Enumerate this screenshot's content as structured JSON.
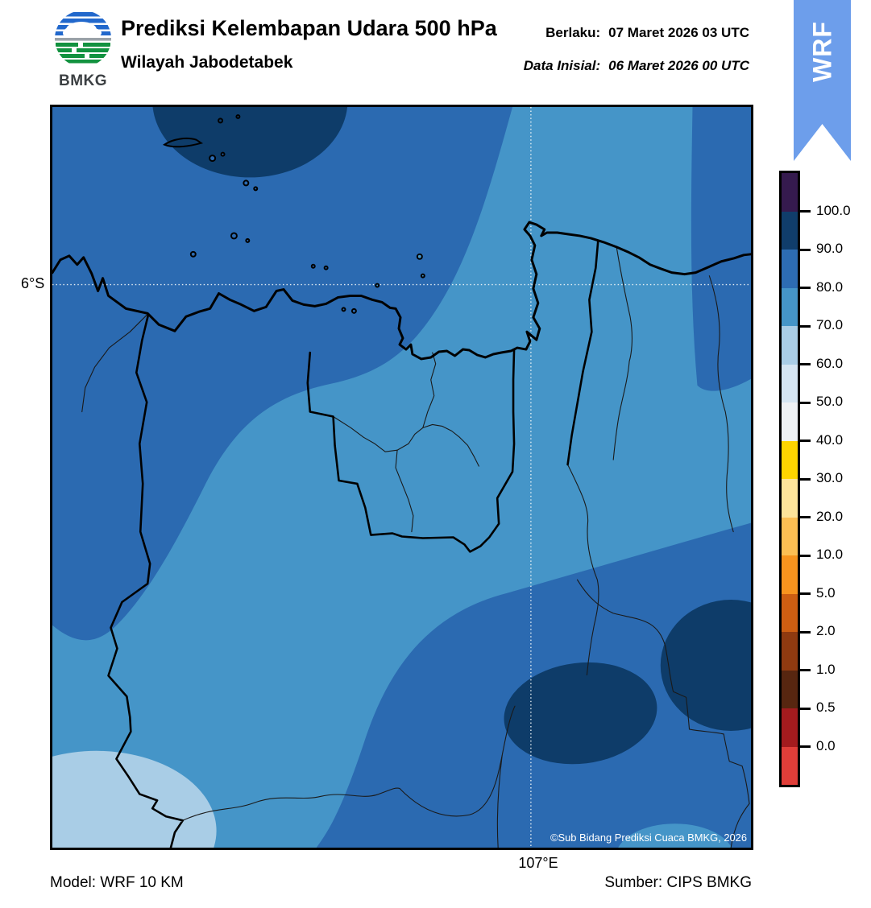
{
  "header": {
    "logo_text": "BMKG",
    "title": "Prediksi Kelembapan Udara 500 hPa",
    "subtitle": "Wilayah Jabodetabek",
    "valid": {
      "label": "Berlaku:",
      "value": "07 Maret 2026 03 UTC"
    },
    "initial": {
      "label": "Data Inisial:",
      "value": "06 Maret 2026 00 UTC"
    },
    "ribbon_label": "WRF",
    "ribbon_color": "#6d9eeb"
  },
  "map": {
    "lat_label": "6°S",
    "lon_label": "107°E",
    "copyright": "©Sub Bidang Prediksi Cuaca BMKG, 2026",
    "fill_colors": {
      "range_60_70": "#a9cde6",
      "range_70_80": "#4595c8",
      "range_80_90": "#2b6ab1",
      "range_90_100": "#0e3c69"
    }
  },
  "colorbar": {
    "tick_labels": [
      "100.0",
      "90.0",
      "80.0",
      "70.0",
      "60.0",
      "50.0",
      "40.0",
      "30.0",
      "20.0",
      "10.0",
      "5.0",
      "2.0",
      "1.0",
      "0.5",
      "0.0"
    ],
    "segment_colors_top_to_bottom": [
      "#351a4e",
      "#103d6b",
      "#2d6cb3",
      "#4595c8",
      "#a9cde6",
      "#d5e5f2",
      "#eef1f4",
      "#fed500",
      "#fde49a",
      "#fcbf53",
      "#f7941e",
      "#cd5e12",
      "#8f3a10",
      "#572610",
      "#a31b1e",
      "#e03e39"
    ]
  },
  "footer": {
    "model": "Model: WRF 10 KM",
    "source": "Sumber: CIPS BMKG"
  },
  "chart_data": {
    "type": "heatmap",
    "title": "Prediksi Kelembapan Udara 500 hPa",
    "region": "Wilayah Jabodetabek",
    "variable": "Kelembapan udara (%) pada 500 hPa",
    "valid_time": "07 Maret 2026 03 UTC",
    "initial_time": "06 Maret 2026 00 UTC",
    "colorbar_levels": [
      0.0,
      0.5,
      1.0,
      2.0,
      5.0,
      10.0,
      20.0,
      30.0,
      40.0,
      50.0,
      60.0,
      70.0,
      80.0,
      90.0,
      100.0
    ],
    "visible_value_ranges": [
      "60-70",
      "70-80",
      "80-90",
      "90-100"
    ],
    "gridlines": {
      "lat": "6°S",
      "lon": "107°E"
    },
    "legend_position": "right"
  }
}
